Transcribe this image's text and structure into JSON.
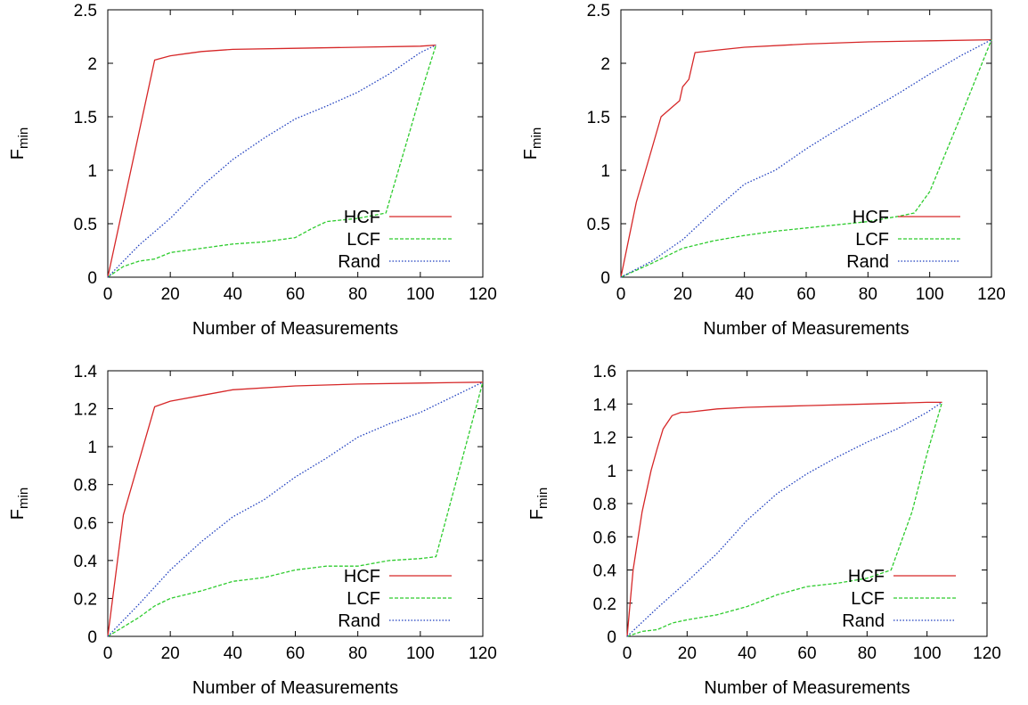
{
  "chart_data": [
    {
      "type": "line",
      "xlabel": "Number of Measurements",
      "ylabel": "F",
      "ylabel_sub": "min",
      "xlim": [
        0,
        120
      ],
      "ylim": [
        0,
        2.5
      ],
      "xticks": [
        0,
        20,
        40,
        60,
        80,
        100,
        120
      ],
      "yticks": [
        0,
        0.5,
        1,
        1.5,
        2,
        2.5
      ],
      "grid": false,
      "legend_position": "bottom-right",
      "series": [
        {
          "name": "HCF",
          "color": "#d62728",
          "style": "solid",
          "x": [
            0,
            15,
            20,
            25,
            30,
            40,
            60,
            80,
            100,
            105
          ],
          "y": [
            0,
            2.03,
            2.07,
            2.09,
            2.11,
            2.13,
            2.14,
            2.15,
            2.16,
            2.17
          ]
        },
        {
          "name": "LCF",
          "color": "#2ecc2e",
          "style": "dashed",
          "x": [
            0,
            5,
            10,
            15,
            20,
            30,
            40,
            50,
            60,
            65,
            70,
            80,
            89,
            95,
            100,
            105
          ],
          "y": [
            0,
            0.1,
            0.15,
            0.17,
            0.23,
            0.27,
            0.31,
            0.33,
            0.37,
            0.45,
            0.52,
            0.55,
            0.6,
            1.2,
            1.7,
            2.17
          ]
        },
        {
          "name": "Rand",
          "color": "#1f3fbf",
          "style": "dotted",
          "x": [
            0,
            10,
            20,
            30,
            40,
            50,
            60,
            70,
            80,
            90,
            100,
            105
          ],
          "y": [
            0,
            0.3,
            0.55,
            0.85,
            1.1,
            1.3,
            1.48,
            1.6,
            1.73,
            1.9,
            2.1,
            2.17
          ]
        }
      ]
    },
    {
      "type": "line",
      "xlabel": "Number of Measurements",
      "ylabel": "F",
      "ylabel_sub": "min",
      "xlim": [
        0,
        120
      ],
      "ylim": [
        0,
        2.5
      ],
      "xticks": [
        0,
        20,
        40,
        60,
        80,
        100,
        120
      ],
      "yticks": [
        0,
        0.5,
        1,
        1.5,
        2,
        2.5
      ],
      "grid": false,
      "legend_position": "bottom-right",
      "series": [
        {
          "name": "HCF",
          "color": "#d62728",
          "style": "solid",
          "x": [
            0,
            5,
            10,
            13,
            17,
            19,
            20,
            22,
            24,
            30,
            40,
            60,
            80,
            100,
            120
          ],
          "y": [
            0,
            0.7,
            1.2,
            1.5,
            1.6,
            1.65,
            1.78,
            1.85,
            2.1,
            2.12,
            2.15,
            2.18,
            2.2,
            2.21,
            2.22
          ]
        },
        {
          "name": "LCF",
          "color": "#2ecc2e",
          "style": "dashed",
          "x": [
            0,
            10,
            20,
            30,
            40,
            50,
            60,
            70,
            80,
            90,
            95,
            100,
            110,
            120
          ],
          "y": [
            0,
            0.13,
            0.27,
            0.34,
            0.39,
            0.43,
            0.46,
            0.49,
            0.52,
            0.57,
            0.6,
            0.8,
            1.5,
            2.22
          ]
        },
        {
          "name": "Rand",
          "color": "#1f3fbf",
          "style": "dotted",
          "x": [
            0,
            10,
            20,
            30,
            40,
            50,
            60,
            70,
            80,
            90,
            100,
            110,
            120
          ],
          "y": [
            0,
            0.15,
            0.35,
            0.62,
            0.87,
            1.0,
            1.2,
            1.38,
            1.55,
            1.72,
            1.9,
            2.07,
            2.22
          ]
        }
      ]
    },
    {
      "type": "line",
      "xlabel": "Number of Measurements",
      "ylabel": "F",
      "ylabel_sub": "min",
      "xlim": [
        0,
        120
      ],
      "ylim": [
        0,
        1.4
      ],
      "xticks": [
        0,
        20,
        40,
        60,
        80,
        100,
        120
      ],
      "yticks": [
        0,
        0.2,
        0.4,
        0.6,
        0.8,
        1,
        1.2,
        1.4
      ],
      "grid": false,
      "legend_position": "bottom-right",
      "series": [
        {
          "name": "HCF",
          "color": "#d62728",
          "style": "solid",
          "x": [
            0,
            5,
            15,
            20,
            30,
            40,
            60,
            80,
            100,
            120
          ],
          "y": [
            0,
            0.64,
            1.21,
            1.24,
            1.27,
            1.3,
            1.32,
            1.33,
            1.335,
            1.34
          ]
        },
        {
          "name": "LCF",
          "color": "#2ecc2e",
          "style": "dashed",
          "x": [
            0,
            5,
            10,
            15,
            20,
            30,
            40,
            50,
            60,
            70,
            80,
            90,
            100,
            105,
            120
          ],
          "y": [
            0,
            0.05,
            0.1,
            0.16,
            0.2,
            0.24,
            0.29,
            0.31,
            0.35,
            0.37,
            0.37,
            0.4,
            0.41,
            0.42,
            1.34
          ]
        },
        {
          "name": "Rand",
          "color": "#1f3fbf",
          "style": "dotted",
          "x": [
            0,
            10,
            20,
            30,
            40,
            50,
            60,
            70,
            80,
            90,
            100,
            110,
            120
          ],
          "y": [
            0,
            0.17,
            0.35,
            0.5,
            0.63,
            0.72,
            0.84,
            0.94,
            1.05,
            1.12,
            1.18,
            1.26,
            1.34
          ]
        }
      ]
    },
    {
      "type": "line",
      "xlabel": "Number of Measurements",
      "ylabel": "F",
      "ylabel_sub": "min",
      "xlim": [
        0,
        120
      ],
      "ylim": [
        0,
        1.6
      ],
      "xticks": [
        0,
        20,
        40,
        60,
        80,
        100,
        120
      ],
      "yticks": [
        0,
        0.2,
        0.4,
        0.6,
        0.8,
        1,
        1.2,
        1.4,
        1.6
      ],
      "grid": false,
      "legend_position": "bottom-right",
      "series": [
        {
          "name": "HCF",
          "color": "#d62728",
          "style": "solid",
          "x": [
            0,
            2,
            5,
            8,
            10,
            12,
            15,
            18,
            20,
            30,
            40,
            60,
            80,
            100,
            105
          ],
          "y": [
            0,
            0.4,
            0.75,
            1.0,
            1.13,
            1.25,
            1.33,
            1.35,
            1.35,
            1.37,
            1.38,
            1.39,
            1.4,
            1.41,
            1.41
          ]
        },
        {
          "name": "LCF",
          "color": "#2ecc2e",
          "style": "dashed",
          "x": [
            0,
            5,
            10,
            15,
            20,
            30,
            40,
            50,
            60,
            70,
            80,
            88,
            95,
            100,
            105
          ],
          "y": [
            0,
            0.03,
            0.04,
            0.08,
            0.1,
            0.13,
            0.18,
            0.25,
            0.3,
            0.32,
            0.35,
            0.4,
            0.75,
            1.1,
            1.41
          ]
        },
        {
          "name": "Rand",
          "color": "#1f3fbf",
          "style": "dotted",
          "x": [
            0,
            10,
            20,
            30,
            40,
            50,
            60,
            70,
            80,
            90,
            100,
            105
          ],
          "y": [
            0,
            0.17,
            0.33,
            0.5,
            0.7,
            0.86,
            0.98,
            1.08,
            1.17,
            1.25,
            1.35,
            1.41
          ]
        }
      ]
    }
  ]
}
